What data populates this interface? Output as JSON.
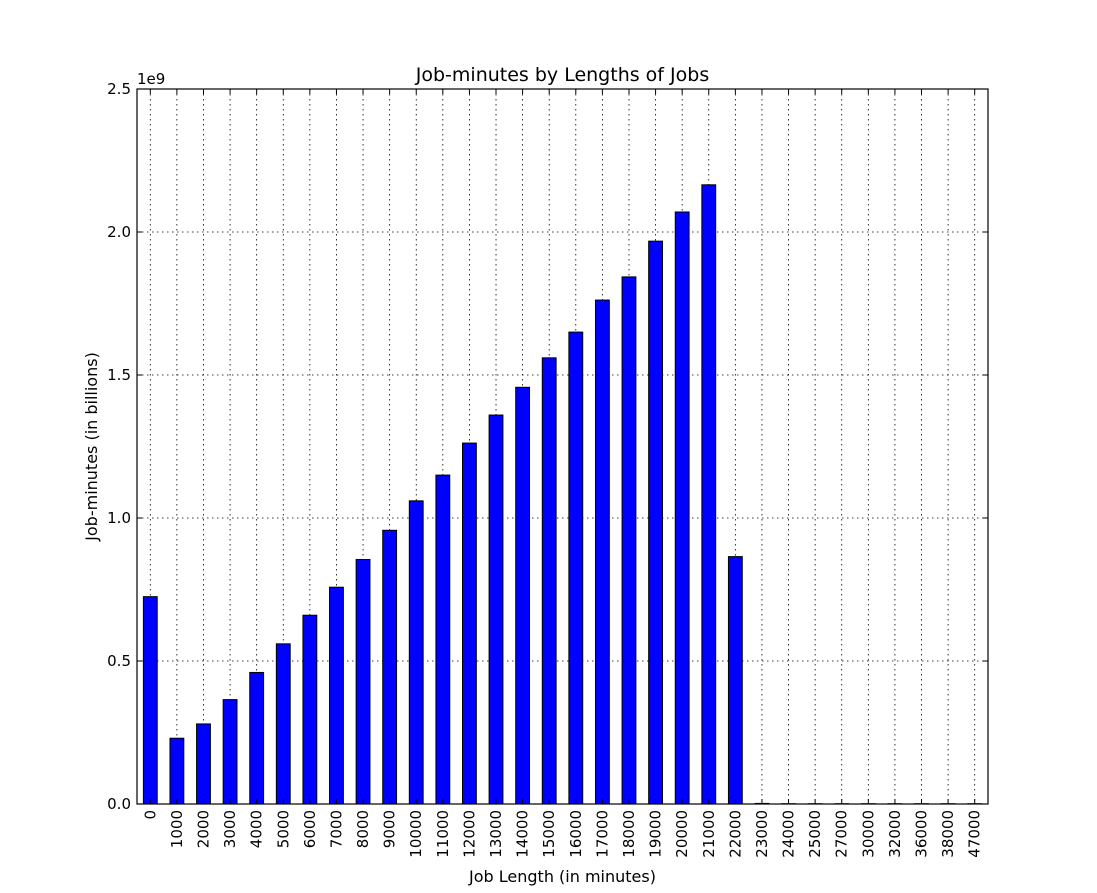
{
  "chart_data": {
    "type": "bar",
    "title": "Job-minutes by Lengths of Jobs",
    "xlabel": "Job Length (in minutes)",
    "ylabel": "Job-minutes (in billions)",
    "y_offset_label": "1e9",
    "categories": [
      "0",
      "1000",
      "2000",
      "3000",
      "4000",
      "5000",
      "6000",
      "7000",
      "8000",
      "9000",
      "10000",
      "11000",
      "12000",
      "13000",
      "14000",
      "15000",
      "16000",
      "17000",
      "18000",
      "19000",
      "20000",
      "21000",
      "22000",
      "23000",
      "24000",
      "25000",
      "27000",
      "30000",
      "32000",
      "36000",
      "38000",
      "47000"
    ],
    "series": [
      {
        "values": [
          0.725,
          0.23,
          0.28,
          0.365,
          0.46,
          0.56,
          0.66,
          0.758,
          0.855,
          0.957,
          1.06,
          1.15,
          1.262,
          1.36,
          1.457,
          1.56,
          1.65,
          1.762,
          1.843,
          1.968,
          2.07,
          2.165,
          0.865,
          0.002,
          0.001,
          0.001,
          0.001,
          0.001,
          0.001,
          0.001,
          0.001,
          0.001
        ]
      }
    ],
    "value_scale": 1000000000,
    "ylim": [
      0,
      2.5
    ],
    "yticks": [
      0.0,
      0.5,
      1.0,
      1.5,
      2.0,
      2.5
    ],
    "ytick_labels": [
      "0.0",
      "0.5",
      "1.0",
      "1.5",
      "2.0",
      "2.5"
    ],
    "grid": true,
    "bar_color": "#0000ff"
  }
}
